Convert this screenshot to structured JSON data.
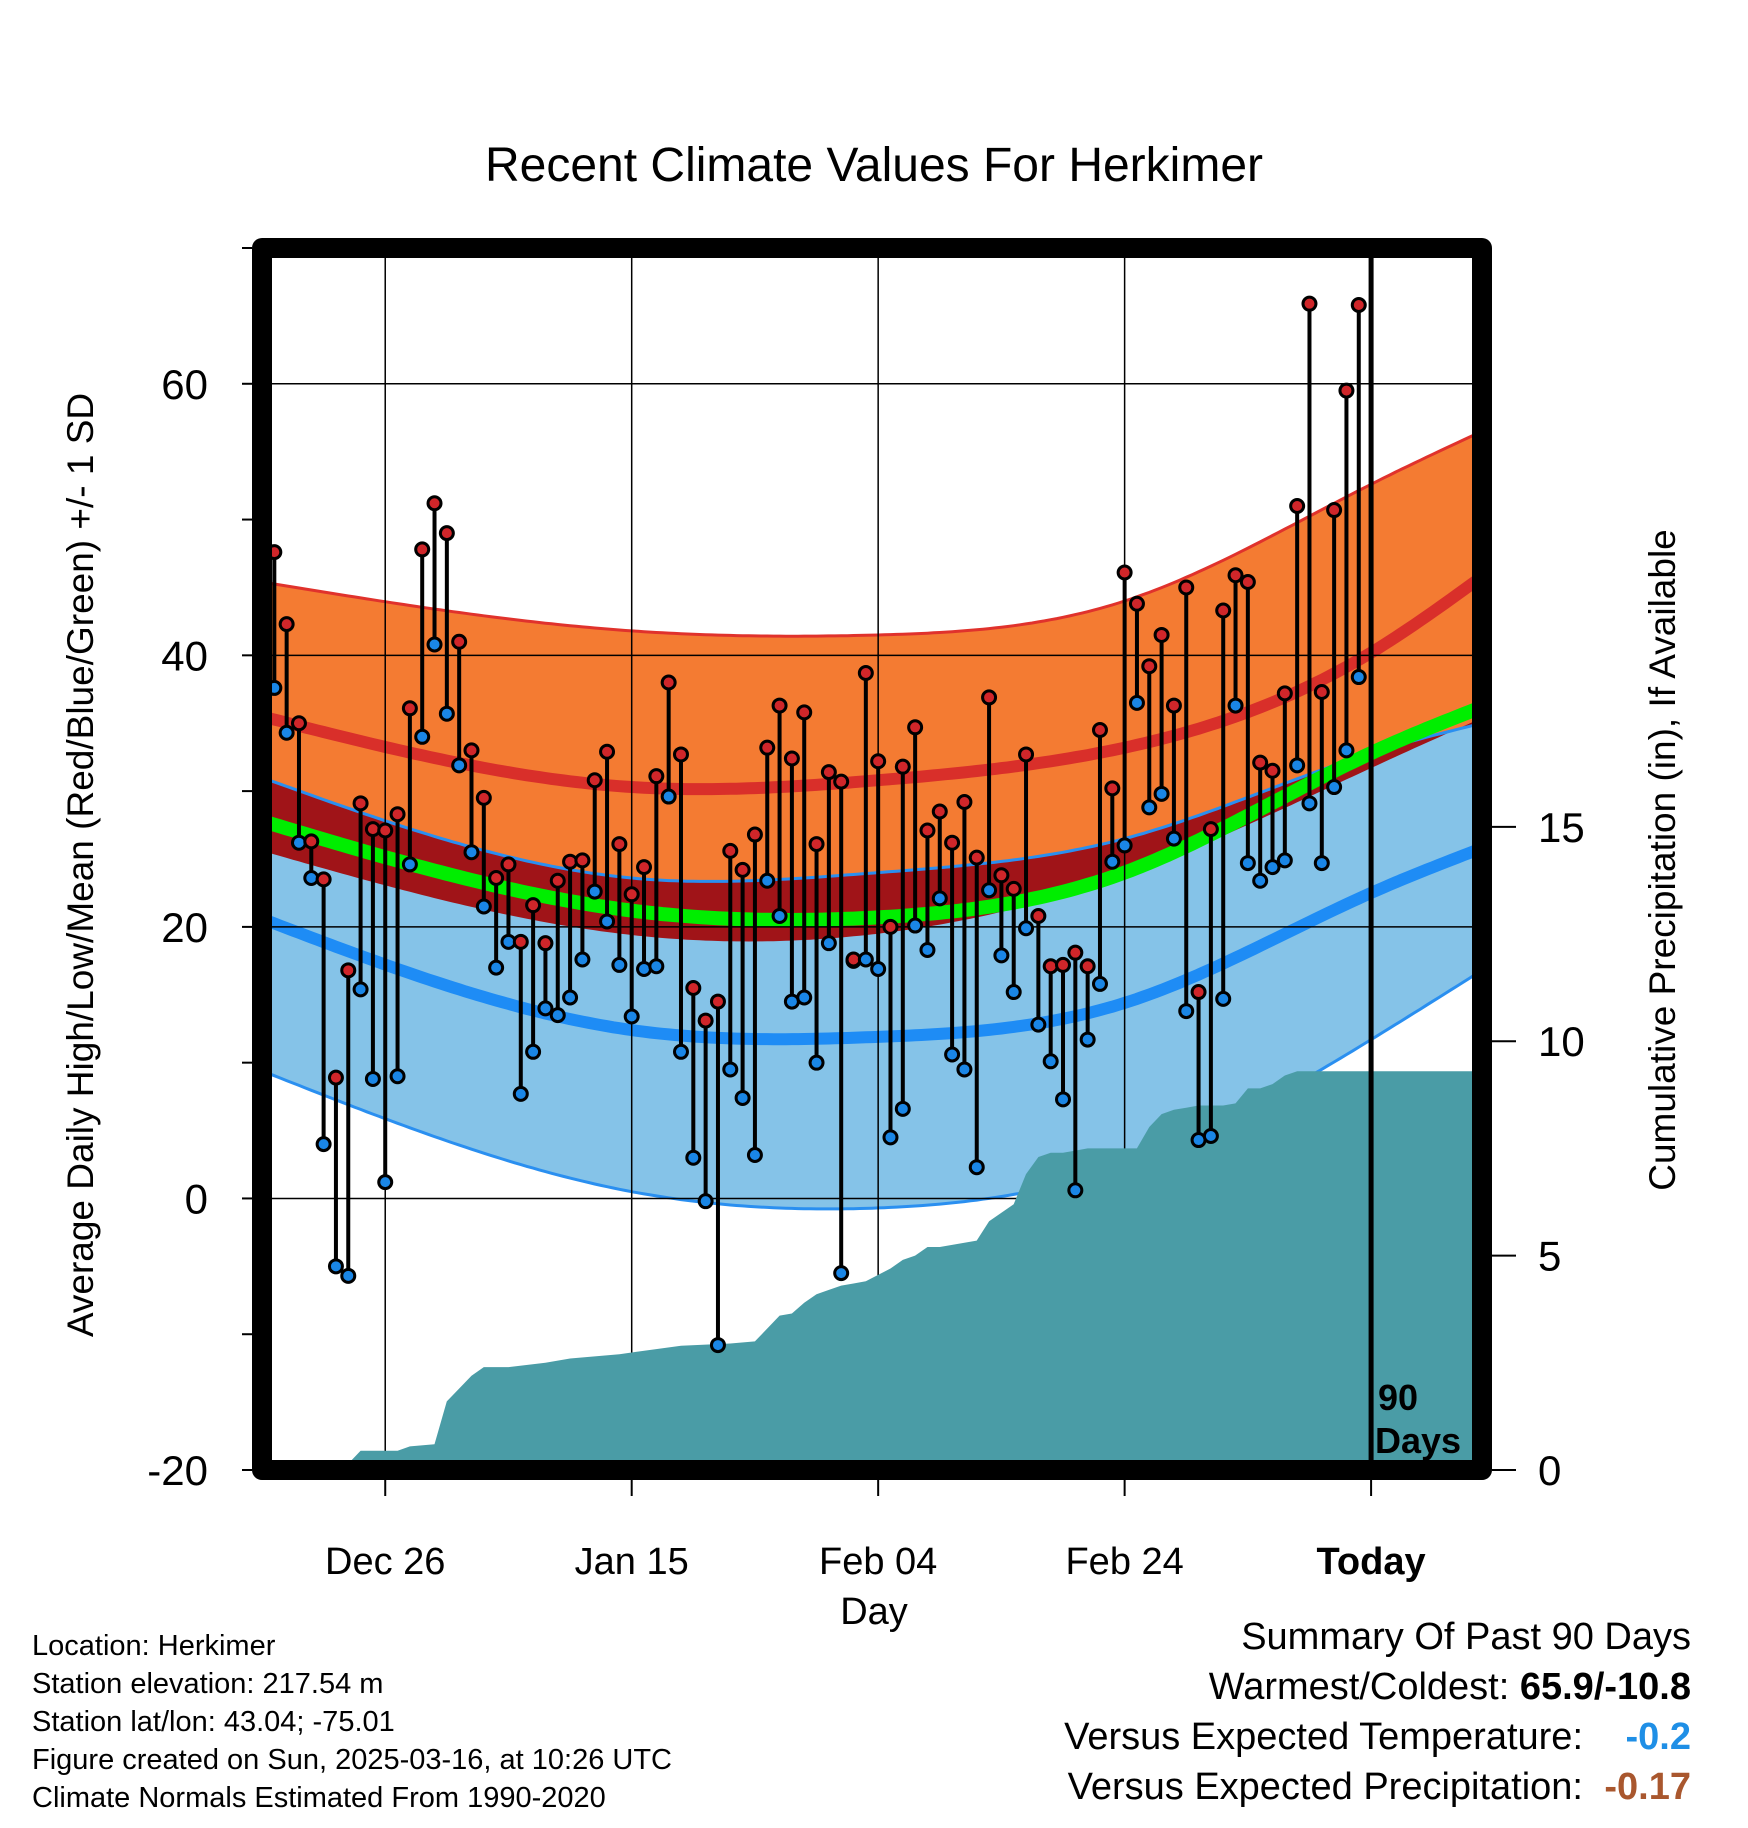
{
  "chart_data": {
    "type": "line",
    "title": "Recent Climate Values For Herkimer",
    "xlabel": "Day",
    "ylabel": "Average Daily High/Low/Mean (Red/Blue/Green) +/- 1 SD",
    "y2label": "Cumulative Precipitation (in), If Available",
    "x_tick_labels": [
      "Dec 26",
      "Jan 15",
      "Feb 04",
      "Feb 24",
      "Today"
    ],
    "y_tick_labels": [
      "-20",
      "0",
      "20",
      "40",
      "60"
    ],
    "y2_tick_labels": [
      "0",
      "5",
      "10",
      "15"
    ],
    "ylim": [
      -20,
      70
    ],
    "y2lim": [
      0,
      28.5
    ],
    "x_range_days": [
      -90,
      9
    ],
    "today_marker_label_line1": "90",
    "today_marker_label_line2": "Days",
    "normals": {
      "high_mean": [
        [
          -90,
          35.5
        ],
        [
          -60,
          30.3
        ],
        [
          -40,
          30.8
        ],
        [
          -20,
          33.2
        ],
        [
          0,
          40.2
        ],
        [
          9,
          45.8
        ]
      ],
      "high_plus_sd": [
        [
          -90,
          45.4
        ],
        [
          -60,
          41.8
        ],
        [
          -40,
          41.5
        ],
        [
          -20,
          44.0
        ],
        [
          0,
          52.6
        ],
        [
          9,
          56.5
        ]
      ],
      "high_minus_sd": [
        [
          -90,
          25.6
        ],
        [
          -60,
          19.4
        ],
        [
          -40,
          19.5
        ],
        [
          -20,
          23.8
        ],
        [
          0,
          31.7
        ],
        [
          9,
          35.4
        ]
      ],
      "mean": [
        [
          -90,
          27.8
        ],
        [
          -60,
          21.2
        ],
        [
          -40,
          20.7
        ],
        [
          -20,
          24.0
        ],
        [
          0,
          32.8
        ],
        [
          9,
          36.2
        ]
      ],
      "low_mean": [
        [
          -90,
          20.6
        ],
        [
          -60,
          12.4
        ],
        [
          -40,
          11.9
        ],
        [
          -20,
          14.4
        ],
        [
          0,
          22.5
        ],
        [
          9,
          25.8
        ]
      ],
      "low_plus_sd": [
        [
          -90,
          31.0
        ],
        [
          -60,
          23.6
        ],
        [
          -40,
          24.0
        ],
        [
          -20,
          26.5
        ],
        [
          0,
          32.8
        ],
        [
          9,
          35.0
        ]
      ],
      "low_minus_sd": [
        [
          -90,
          9.4
        ],
        [
          -60,
          0.5
        ],
        [
          -40,
          -0.7
        ],
        [
          -20,
          2.4
        ],
        [
          0,
          11.7
        ],
        [
          9,
          16.8
        ]
      ]
    },
    "series": [
      {
        "name": "High",
        "x": [
          -90,
          -89,
          -88,
          -87,
          -86,
          -85,
          -84,
          -83,
          -82,
          -81,
          -80,
          -79,
          -78,
          -77,
          -76,
          -75,
          -74,
          -73,
          -72,
          -71,
          -70,
          -69,
          -68,
          -67,
          -66,
          -65,
          -64,
          -63,
          -62,
          -61,
          -60,
          -59,
          -58,
          -57,
          -56,
          -55,
          -54,
          -53,
          -52,
          -51,
          -50,
          -49,
          -48,
          -47,
          -46,
          -45,
          -44,
          -43,
          -42,
          -41,
          -40,
          -39,
          -38,
          -37,
          -36,
          -35,
          -34,
          -33,
          -32,
          -31,
          -30,
          -29,
          -28,
          -27,
          -26,
          -25,
          -24,
          -23,
          -22,
          -21,
          -20,
          -19,
          -18,
          -17,
          -16,
          -15,
          -14,
          -13,
          -12,
          -11,
          -10,
          -9,
          -8,
          -7,
          -6,
          -5,
          -4,
          -3,
          -2,
          -1
        ],
        "values": [
          38.1,
          47.6,
          42.3,
          35.0,
          26.3,
          23.5,
          8.9,
          16.8,
          29.1,
          27.2,
          27.1,
          28.3,
          36.1,
          47.8,
          51.2,
          49.0,
          41.0,
          33.0,
          29.5,
          23.6,
          24.6,
          18.9,
          21.6,
          18.8,
          23.4,
          24.8,
          24.9,
          30.8,
          32.9,
          26.1,
          22.4,
          24.4,
          31.1,
          38.0,
          32.7,
          15.5,
          13.1,
          14.5,
          25.6,
          24.2,
          26.8,
          33.2,
          36.3,
          32.4,
          35.8,
          26.1,
          31.4,
          30.7,
          17.6,
          38.7,
          32.2,
          20.0,
          31.8,
          34.7,
          27.1,
          28.5,
          26.2,
          29.2,
          25.1,
          36.9,
          23.8,
          22.8,
          32.7,
          20.8,
          17.1,
          17.2,
          18.1,
          17.1,
          34.5,
          30.2,
          46.1,
          43.8,
          39.2,
          41.5,
          36.3,
          45.0,
          15.2,
          27.2,
          43.3,
          45.9,
          45.4,
          32.1,
          31.5,
          37.2,
          51.0,
          65.9,
          37.3,
          50.7,
          59.5,
          65.8
        ]
      },
      {
        "name": "Low",
        "x": [
          -90,
          -89,
          -88,
          -87,
          -86,
          -85,
          -84,
          -83,
          -82,
          -81,
          -80,
          -79,
          -78,
          -77,
          -76,
          -75,
          -74,
          -73,
          -72,
          -71,
          -70,
          -69,
          -68,
          -67,
          -66,
          -65,
          -64,
          -63,
          -62,
          -61,
          -60,
          -59,
          -58,
          -57,
          -56,
          -55,
          -54,
          -53,
          -52,
          -51,
          -50,
          -49,
          -48,
          -47,
          -46,
          -45,
          -44,
          -43,
          -42,
          -41,
          -40,
          -39,
          -38,
          -37,
          -36,
          -35,
          -34,
          -33,
          -32,
          -31,
          -30,
          -29,
          -28,
          -27,
          -26,
          -25,
          -24,
          -23,
          -22,
          -21,
          -20,
          -19,
          -18,
          -17,
          -16,
          -15,
          -14,
          -13,
          -12,
          -11,
          -10,
          -9,
          -8,
          -7,
          -6,
          -5,
          -4,
          -3,
          -2,
          -1
        ],
        "values": [
          27.0,
          37.6,
          34.3,
          26.2,
          23.6,
          4.0,
          -5.0,
          -5.7,
          15.4,
          8.8,
          1.2,
          9.0,
          24.6,
          34.0,
          40.8,
          35.7,
          31.9,
          25.5,
          21.5,
          17.0,
          18.9,
          7.7,
          10.8,
          14.0,
          13.5,
          14.8,
          17.6,
          22.6,
          20.4,
          17.2,
          13.4,
          16.9,
          17.1,
          29.6,
          10.8,
          3.0,
          -0.2,
          -10.8,
          9.5,
          7.4,
          3.2,
          23.4,
          20.8,
          14.5,
          14.8,
          10.0,
          18.8,
          -5.5,
          17.5,
          17.6,
          16.9,
          4.5,
          6.6,
          20.1,
          18.3,
          22.1,
          10.6,
          9.5,
          2.3,
          22.7,
          17.9,
          15.2,
          19.9,
          12.8,
          10.1,
          7.3,
          0.6,
          11.7,
          15.8,
          24.8,
          26.0,
          36.5,
          28.8,
          29.8,
          26.5,
          13.8,
          4.3,
          4.6,
          14.7,
          36.3,
          24.7,
          23.4,
          24.4,
          24.9,
          31.9,
          29.1,
          24.7,
          30.3,
          33.0,
          38.4
        ]
      }
    ],
    "precipitation_cumulative": {
      "x": [
        -90,
        -87,
        -86,
        -83,
        -82,
        -79,
        -78,
        -76,
        -75,
        -73,
        -72,
        -70,
        -67,
        -65,
        -61,
        -56,
        -52,
        -50,
        -48,
        -47,
        -46,
        -45,
        -44,
        -43,
        -42,
        -41,
        -39,
        -38,
        -37,
        -36,
        -35,
        -32,
        -31,
        -30,
        -29,
        -28,
        -27,
        -26,
        -25,
        -24,
        -23,
        -22,
        -21,
        -20,
        -19,
        -18,
        -17,
        -16,
        -15,
        -14,
        -13,
        -12,
        -11,
        -10,
        -9,
        -8,
        -7,
        -6,
        -5,
        -4,
        -3,
        -2,
        -1,
        0,
        9
      ],
      "values": [
        0.0,
        0.0,
        0.15,
        0.15,
        0.45,
        0.45,
        0.55,
        0.6,
        1.6,
        2.2,
        2.4,
        2.4,
        2.5,
        2.6,
        2.7,
        2.9,
        2.95,
        3.0,
        3.6,
        3.65,
        3.9,
        4.1,
        4.2,
        4.3,
        4.35,
        4.4,
        4.7,
        4.9,
        5.0,
        5.2,
        5.2,
        5.35,
        5.8,
        6.0,
        6.2,
        6.9,
        7.3,
        7.4,
        7.4,
        7.45,
        7.5,
        7.5,
        7.5,
        7.5,
        7.5,
        8.0,
        8.3,
        8.4,
        8.45,
        8.5,
        8.5,
        8.5,
        8.55,
        8.9,
        8.9,
        9.0,
        9.2,
        9.3,
        9.3,
        9.3,
        9.3,
        9.3,
        9.3,
        9.3,
        9.3
      ]
    },
    "colors": {
      "high_band": "#f47b32",
      "high_line": "#d92f2a",
      "high_band_edge": "#e0322c",
      "overlap_band": "#a01418",
      "low_band": "#85c3e8",
      "low_line": "#1e8cf5",
      "low_band_edge": "#2a8ff0",
      "mean_line": "#00ee00",
      "precip_fill": "#4a9ca6",
      "high_marker": "#d0262a",
      "low_marker": "#1a86e6",
      "versus_temperature_value": "#1f8fe6",
      "versus_precipitation_value": "#a9572e"
    }
  },
  "footer": {
    "location": "Location: Herkimer",
    "elevation": "Station elevation: 217.54 m",
    "latlon": "Station lat/lon: 43.04; -75.01",
    "created": "Figure created on Sun, 2025-03-16, at 10:26 UTC",
    "normals_period": "Climate Normals Estimated From 1990-2020"
  },
  "summary": {
    "heading": "Summary Of Past 90 Days",
    "warmest_coldest_label": "Warmest/Coldest:",
    "warmest_coldest_value": "65.9/-10.8",
    "versus_temperature_label": "Versus Expected Temperature:",
    "versus_temperature_value": "-0.2",
    "versus_precipitation_label": "Versus Expected Precipitation:",
    "versus_precipitation_value": "-0.17"
  }
}
